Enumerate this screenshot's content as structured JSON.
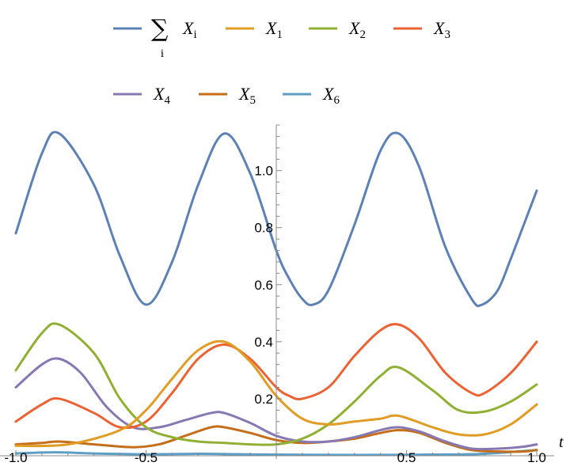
{
  "chart_data": {
    "type": "line",
    "xlabel": "t",
    "ylabel": "",
    "xlim": [
      -1.0,
      1.0
    ],
    "ylim": [
      0.0,
      1.16
    ],
    "x_ticks": [
      -1.0,
      -0.5,
      0.5,
      1.0
    ],
    "x_tick_labels": [
      "-1.0",
      "-0.5",
      "0.5",
      "1.0"
    ],
    "y_ticks": [
      0.2,
      0.4,
      0.6,
      0.8,
      1.0
    ],
    "y_tick_labels": [
      "0.2",
      "0.4",
      "0.6",
      "0.8",
      "1.0"
    ],
    "grid": false,
    "legend": "top",
    "series": [
      {
        "name": "∑ X_i",
        "label_main": "X",
        "label_sub": "i",
        "sum": true,
        "color": "#5E81B5",
        "x": [
          -1.0,
          -0.9,
          -0.833,
          -0.7,
          -0.6,
          -0.5,
          -0.4,
          -0.3,
          -0.2,
          -0.1,
          0.0,
          0.05,
          0.1,
          0.14,
          0.2,
          0.3,
          0.4,
          0.47,
          0.55,
          0.65,
          0.75,
          0.79,
          0.85,
          0.9,
          0.95,
          1.0
        ],
        "y": [
          0.78,
          1.06,
          1.13,
          0.95,
          0.7,
          0.53,
          0.68,
          0.95,
          1.13,
          0.99,
          0.72,
          0.62,
          0.55,
          0.53,
          0.58,
          0.81,
          1.07,
          1.13,
          1.01,
          0.73,
          0.55,
          0.53,
          0.58,
          0.69,
          0.81,
          0.93
        ]
      },
      {
        "name": "X_1",
        "label_main": "X",
        "label_sub": "1",
        "color": "#E19C24",
        "x": [
          -1.0,
          -0.8,
          -0.6,
          -0.5,
          -0.4,
          -0.3,
          -0.2,
          -0.1,
          0.0,
          0.1,
          0.2,
          0.3,
          0.4,
          0.47,
          0.6,
          0.7,
          0.8,
          0.9,
          1.0
        ],
        "y": [
          0.035,
          0.04,
          0.09,
          0.16,
          0.27,
          0.37,
          0.4,
          0.33,
          0.21,
          0.13,
          0.11,
          0.12,
          0.13,
          0.14,
          0.1,
          0.075,
          0.075,
          0.11,
          0.18
        ]
      },
      {
        "name": "X_2",
        "label_main": "X",
        "label_sub": "2",
        "color": "#8FB032",
        "x": [
          -1.0,
          -0.9,
          -0.833,
          -0.7,
          -0.6,
          -0.5,
          -0.4,
          -0.3,
          -0.2,
          -0.1,
          0.0,
          0.1,
          0.2,
          0.3,
          0.4,
          0.47,
          0.6,
          0.7,
          0.8,
          0.9,
          1.0
        ],
        "y": [
          0.3,
          0.43,
          0.46,
          0.36,
          0.2,
          0.1,
          0.065,
          0.05,
          0.045,
          0.04,
          0.04,
          0.06,
          0.11,
          0.19,
          0.28,
          0.31,
          0.23,
          0.16,
          0.155,
          0.19,
          0.25
        ]
      },
      {
        "name": "X_3",
        "label_main": "X",
        "label_sub": "3",
        "color": "#EB6235",
        "x": [
          -1.0,
          -0.9,
          -0.833,
          -0.7,
          -0.6,
          -0.5,
          -0.4,
          -0.3,
          -0.2,
          -0.1,
          0.0,
          0.05,
          0.1,
          0.2,
          0.3,
          0.4,
          0.47,
          0.55,
          0.65,
          0.75,
          0.8,
          0.9,
          1.0
        ],
        "y": [
          0.12,
          0.18,
          0.2,
          0.15,
          0.1,
          0.12,
          0.22,
          0.34,
          0.39,
          0.34,
          0.24,
          0.21,
          0.2,
          0.24,
          0.35,
          0.44,
          0.46,
          0.41,
          0.29,
          0.22,
          0.22,
          0.29,
          0.4
        ]
      },
      {
        "name": "X_4",
        "label_main": "X",
        "label_sub": "4",
        "color": "#8778B3",
        "x": [
          -1.0,
          -0.9,
          -0.833,
          -0.75,
          -0.65,
          -0.55,
          -0.45,
          -0.35,
          -0.25,
          -0.2,
          -0.1,
          0.0,
          0.1,
          0.2,
          0.3,
          0.4,
          0.47,
          0.55,
          0.65,
          0.75,
          0.85,
          0.95,
          1.0
        ],
        "y": [
          0.24,
          0.32,
          0.34,
          0.29,
          0.17,
          0.1,
          0.1,
          0.125,
          0.15,
          0.15,
          0.115,
          0.07,
          0.05,
          0.05,
          0.065,
          0.09,
          0.1,
          0.085,
          0.05,
          0.025,
          0.025,
          0.032,
          0.04
        ]
      },
      {
        "name": "X_5",
        "label_main": "X",
        "label_sub": "5",
        "color": "#C56E1A",
        "x": [
          -1.0,
          -0.9,
          -0.833,
          -0.7,
          -0.55,
          -0.45,
          -0.35,
          -0.25,
          -0.2,
          -0.1,
          0.0,
          0.1,
          0.2,
          0.3,
          0.4,
          0.47,
          0.55,
          0.65,
          0.75,
          0.85,
          0.95,
          1.0
        ],
        "y": [
          0.04,
          0.045,
          0.05,
          0.04,
          0.03,
          0.04,
          0.07,
          0.1,
          0.1,
          0.08,
          0.055,
          0.045,
          0.05,
          0.06,
          0.08,
          0.09,
          0.08,
          0.045,
          0.02,
          0.015,
          0.015,
          0.02
        ]
      },
      {
        "name": "X_6",
        "label_main": "X",
        "label_sub": "6",
        "color": "#5D9EC7",
        "x": [
          -1.0,
          -0.85,
          -0.7,
          -0.5,
          -0.3,
          -0.2,
          0.0,
          0.2,
          0.4,
          0.6,
          0.8,
          1.0
        ],
        "y": [
          0.008,
          0.012,
          0.008,
          0.005,
          0.007,
          0.006,
          0.004,
          0.003,
          0.003,
          0.004,
          0.007,
          0.02
        ]
      }
    ]
  }
}
